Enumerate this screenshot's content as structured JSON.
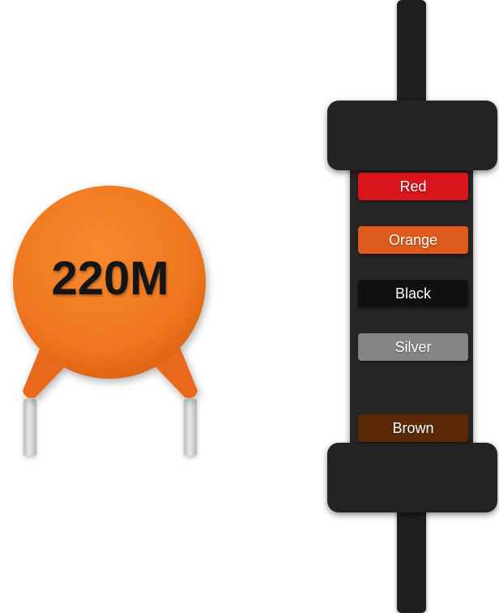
{
  "capacitor": {
    "label": "220M",
    "body_color": "#f07a21",
    "lead_color": "#d3d3d3"
  },
  "resistor": {
    "body_color": "#252525",
    "bands": [
      {
        "label": "Red",
        "color": "#d9141c"
      },
      {
        "label": "Orange",
        "color": "#df5a1d"
      },
      {
        "label": "Black",
        "color": "#111111"
      },
      {
        "label": "Silver",
        "color": "#858585"
      },
      {
        "label": "Brown",
        "color": "#5b2a09"
      }
    ]
  }
}
